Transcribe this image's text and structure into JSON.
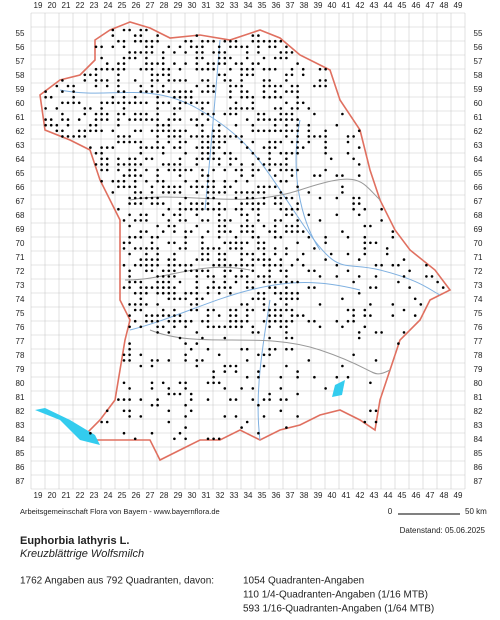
{
  "map": {
    "columns": [
      19,
      20,
      21,
      22,
      23,
      24,
      25,
      26,
      27,
      28,
      29,
      30,
      31,
      32,
      33,
      34,
      35,
      36,
      37,
      38,
      39,
      40,
      41,
      42,
      43,
      44,
      45,
      46,
      47,
      48,
      49
    ],
    "rows": [
      55,
      56,
      57,
      58,
      59,
      60,
      61,
      62,
      63,
      64,
      65,
      66,
      67,
      68,
      69,
      70,
      71,
      72,
      73,
      74,
      75,
      76,
      77,
      78,
      79,
      80,
      81,
      82,
      83,
      84,
      85,
      86,
      87
    ],
    "scale": {
      "start": "0",
      "end": "50 km"
    },
    "credit": "Arbeitsgemeinschaft Flora von Bayern - www.bayernflora.de",
    "date": "Datenstand: 05.06.2025"
  },
  "species": {
    "name": "Euphorbia lathyris L.",
    "common_name": "Kreuzblättrige Wolfsmilch"
  },
  "stats": {
    "summary": "1762 Angaben aus 792 Quadranten, davon:",
    "lines": [
      "1054 Quadranten-Angaben",
      "110 1/4-Quadranten-Angaben (1/16 MTB)",
      "593 1/16-Quadranten-Angaben (1/64 MTB)"
    ]
  }
}
